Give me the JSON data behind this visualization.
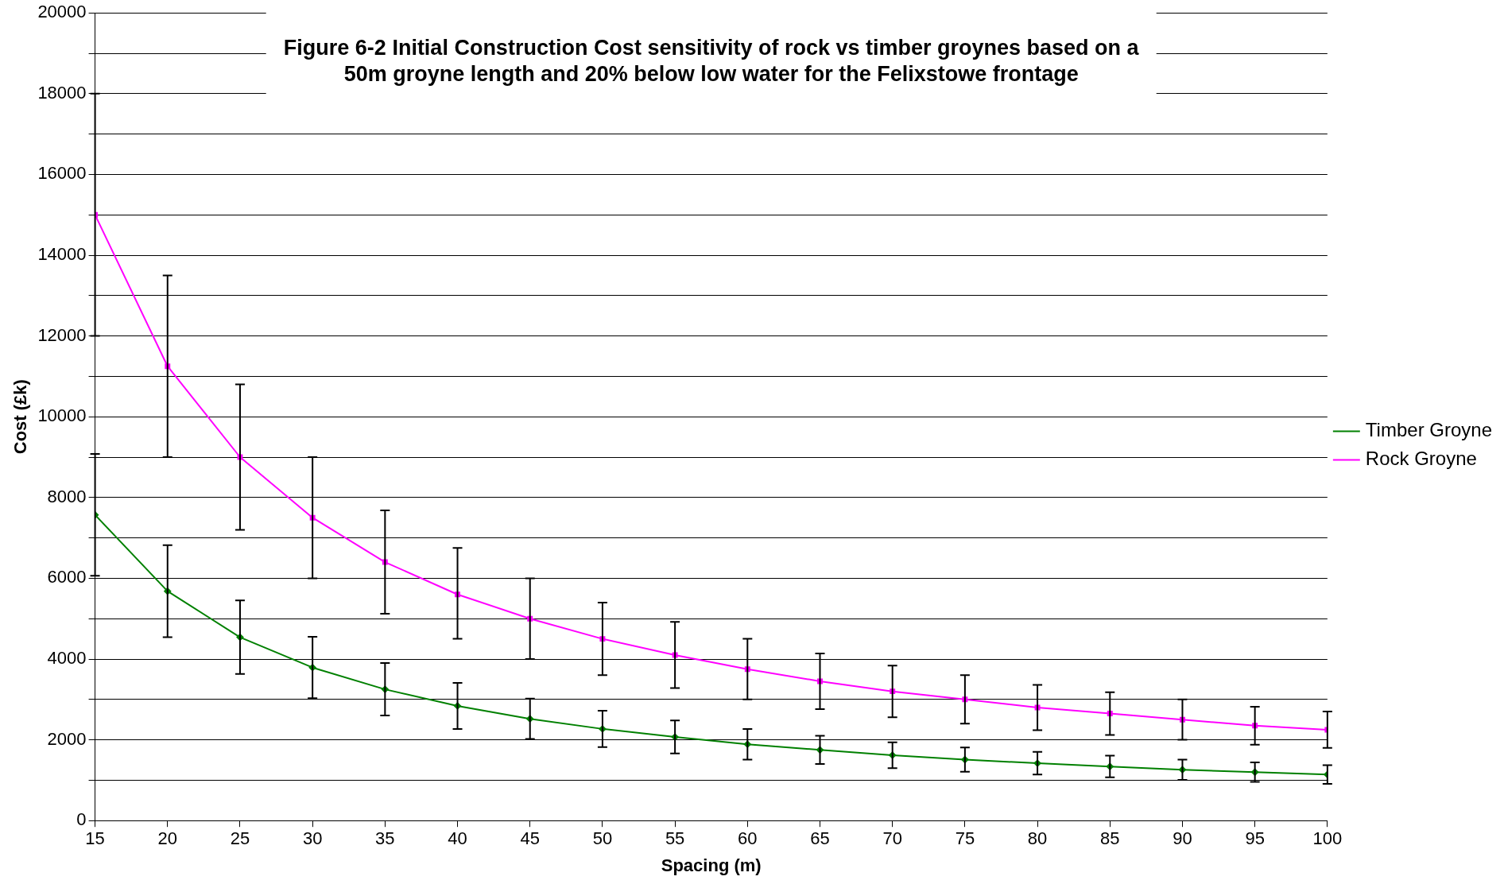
{
  "chart_data": {
    "type": "line",
    "title": "Figure 6-2 Initial Construction Cost sensitivity of rock vs timber groynes based on a 50m groyne length and 20% below low water for the Felixstowe frontage",
    "xlabel": "Spacing (m)",
    "ylabel": "Cost (£k)",
    "x": [
      15,
      20,
      25,
      30,
      35,
      40,
      45,
      50,
      55,
      60,
      65,
      70,
      75,
      80,
      85,
      90,
      95,
      100
    ],
    "series": [
      {
        "name": "Timber Groyne",
        "color": "#008000",
        "marker": "diamond",
        "values": [
          7570,
          5680,
          4540,
          3790,
          3250,
          2840,
          2520,
          2270,
          2070,
          1890,
          1750,
          1620,
          1510,
          1420,
          1340,
          1260,
          1200,
          1140
        ],
        "errors": [
          [
            6060,
            9080
          ],
          [
            4540,
            6820
          ],
          [
            3630,
            5450
          ],
          [
            3030,
            4550
          ],
          [
            2600,
            3900
          ],
          [
            2270,
            3410
          ],
          [
            2020,
            3020
          ],
          [
            1820,
            2720
          ],
          [
            1660,
            2480
          ],
          [
            1510,
            2270
          ],
          [
            1400,
            2100
          ],
          [
            1300,
            1940
          ],
          [
            1210,
            1810
          ],
          [
            1140,
            1700
          ],
          [
            1070,
            1610
          ],
          [
            1010,
            1510
          ],
          [
            960,
            1440
          ],
          [
            910,
            1370
          ]
        ]
      },
      {
        "name": "Rock Groyne",
        "color": "#ff00ff",
        "marker": "square",
        "values": [
          15000,
          11250,
          9000,
          7500,
          6400,
          5600,
          5000,
          4500,
          4100,
          3750,
          3450,
          3200,
          3000,
          2800,
          2650,
          2500,
          2350,
          2250
        ],
        "errors": [
          [
            12000,
            18000
          ],
          [
            9000,
            13500
          ],
          [
            7200,
            10800
          ],
          [
            6000,
            9000
          ],
          [
            5120,
            7680
          ],
          [
            4500,
            6750
          ],
          [
            4000,
            6000
          ],
          [
            3600,
            5400
          ],
          [
            3280,
            4920
          ],
          [
            3000,
            4500
          ],
          [
            2760,
            4140
          ],
          [
            2560,
            3840
          ],
          [
            2400,
            3600
          ],
          [
            2240,
            3360
          ],
          [
            2120,
            3180
          ],
          [
            2000,
            3000
          ],
          [
            1880,
            2820
          ],
          [
            1800,
            2700
          ]
        ]
      }
    ],
    "xlim": [
      15,
      100
    ],
    "xticks": [
      15,
      20,
      25,
      30,
      35,
      40,
      45,
      50,
      55,
      60,
      65,
      70,
      75,
      80,
      85,
      90,
      95,
      100
    ],
    "ylim": [
      0,
      20000
    ],
    "yticks": [
      0,
      {
        "value": 1000,
        "label": null
      },
      2000,
      {
        "value": 3000,
        "label": null
      },
      4000,
      {
        "value": 5000,
        "label": null
      },
      6000,
      {
        "value": 7000,
        "label": null
      },
      8000,
      {
        "value": 9000,
        "label": null
      },
      10000,
      {
        "value": 11000,
        "label": null
      },
      12000,
      {
        "value": 13000,
        "label": null
      },
      14000,
      {
        "value": 15000,
        "label": null
      },
      16000,
      {
        "value": 17000,
        "label": null
      },
      18000,
      {
        "value": 19000,
        "label": null
      },
      20000
    ],
    "grid": "y",
    "legend": "right",
    "line_style": "solid"
  }
}
